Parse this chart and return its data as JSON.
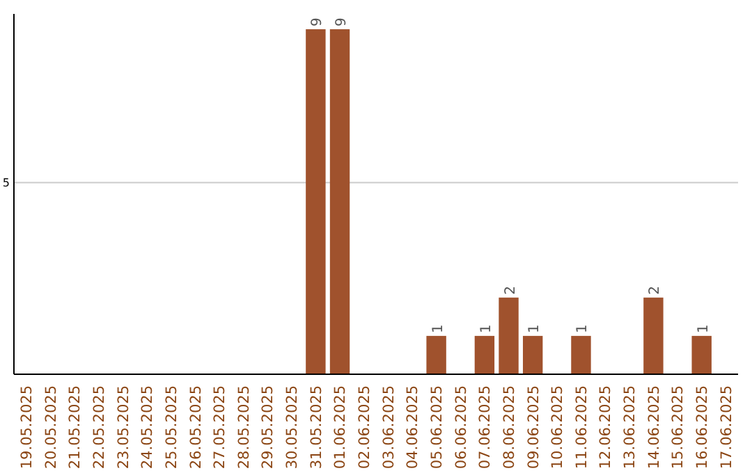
{
  "chart_data": {
    "type": "bar",
    "categories": [
      "19.05.2025",
      "20.05.2025",
      "21.05.2025",
      "22.05.2025",
      "23.05.2025",
      "24.05.2025",
      "25.05.2025",
      "26.05.2025",
      "27.05.2025",
      "28.05.2025",
      "29.05.2025",
      "30.05.2025",
      "31.05.2025",
      "01.06.2025",
      "02.06.2025",
      "03.06.2025",
      "04.06.2025",
      "05.06.2025",
      "06.06.2025",
      "07.06.2025",
      "08.06.2025",
      "09.06.2025",
      "10.06.2025",
      "11.06.2025",
      "12.06.2025",
      "13.06.2025",
      "14.06.2025",
      "15.06.2025",
      "16.06.2025",
      "17.06.2025"
    ],
    "values": [
      null,
      null,
      null,
      null,
      null,
      null,
      null,
      null,
      null,
      null,
      null,
      null,
      9,
      9,
      null,
      null,
      null,
      1,
      null,
      1,
      2,
      1,
      null,
      1,
      null,
      null,
      2,
      null,
      1,
      null
    ],
    "value_labels": [
      null,
      null,
      null,
      null,
      null,
      null,
      null,
      null,
      null,
      null,
      null,
      null,
      "9",
      "9",
      null,
      null,
      null,
      "1",
      null,
      "1",
      "2",
      "1",
      null,
      "1",
      null,
      null,
      "2",
      null,
      "1",
      null
    ],
    "color": "#a0522d",
    "ylim": [
      0,
      9.4
    ],
    "ref_lines": [
      {
        "axis": "y",
        "value": 5,
        "label": "5",
        "color": "#cccccc"
      }
    ]
  }
}
